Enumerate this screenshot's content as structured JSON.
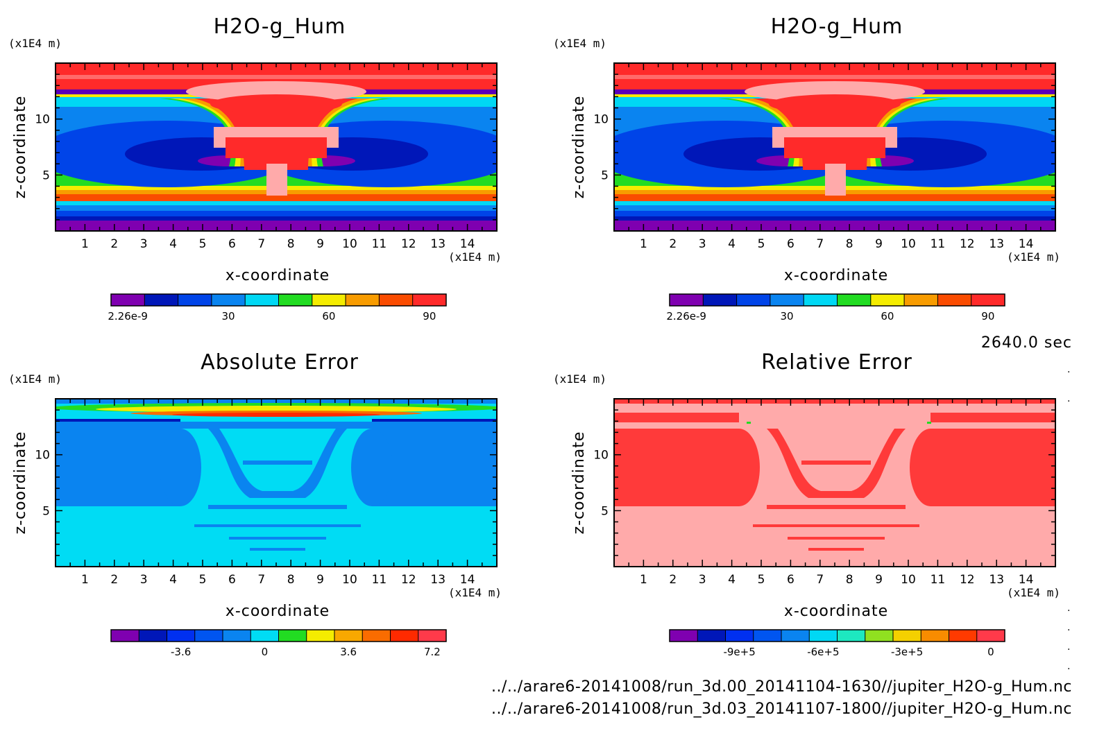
{
  "time_label": "2640.0 sec",
  "file_paths": [
    "../../arare6-20141008/run_3d.00_20141104-1630//jupiter_H2O-g_Hum.nc",
    "../../arare6-20141008/run_3d.03_20141107-1800//jupiter_H2O-g_Hum.nc"
  ],
  "chart_data": [
    {
      "type": "heatmap",
      "title": "H2O-g_Hum",
      "xlabel": "x-coordinate",
      "ylabel": "z-coordinate",
      "x_unit": "(x1E4 m)",
      "y_unit": "(x1E4 m)",
      "xticks": [
        "1",
        "2",
        "3",
        "4",
        "5",
        "6",
        "7",
        "8",
        "9",
        "10",
        "11",
        "12",
        "13",
        "14"
      ],
      "yticks": [
        "5",
        "10"
      ],
      "xlim": [
        0,
        15
      ],
      "ylim": [
        0,
        15
      ],
      "colorbar": {
        "levels": 10,
        "labels": [
          {
            "text": "2.26e-9",
            "level": 0
          },
          {
            "text": "30",
            "level": 3
          },
          {
            "text": "60",
            "level": 6
          },
          {
            "text": "90",
            "level": 9
          }
        ],
        "colors": [
          "#7f00b0",
          "#0017b8",
          "#0044e8",
          "#0a84f0",
          "#00d8f4",
          "#22dc22",
          "#f4ec00",
          "#f89c00",
          "#fa4c00",
          "#ff2a2a"
        ]
      }
    },
    {
      "type": "heatmap",
      "title": "H2O-g_Hum",
      "xlabel": "x-coordinate",
      "ylabel": "z-coordinate",
      "x_unit": "(x1E4 m)",
      "y_unit": "(x1E4 m)",
      "xticks": [
        "1",
        "2",
        "3",
        "4",
        "5",
        "6",
        "7",
        "8",
        "9",
        "10",
        "11",
        "12",
        "13",
        "14"
      ],
      "yticks": [
        "5",
        "10"
      ],
      "xlim": [
        0,
        15
      ],
      "ylim": [
        0,
        15
      ],
      "colorbar": {
        "levels": 10,
        "labels": [
          {
            "text": "2.26e-9",
            "level": 0
          },
          {
            "text": "30",
            "level": 3
          },
          {
            "text": "60",
            "level": 6
          },
          {
            "text": "90",
            "level": 9
          }
        ],
        "colors": [
          "#7f00b0",
          "#0017b8",
          "#0044e8",
          "#0a84f0",
          "#00d8f4",
          "#22dc22",
          "#f4ec00",
          "#f89c00",
          "#fa4c00",
          "#ff2a2a"
        ]
      }
    },
    {
      "type": "heatmap",
      "title": "Absolute Error",
      "xlabel": "x-coordinate",
      "ylabel": "z-coordinate",
      "x_unit": "(x1E4 m)",
      "y_unit": "(x1E4 m)",
      "xticks": [
        "1",
        "2",
        "3",
        "4",
        "5",
        "6",
        "7",
        "8",
        "9",
        "10",
        "11",
        "12",
        "13",
        "14"
      ],
      "yticks": [
        "5",
        "10"
      ],
      "xlim": [
        0,
        15
      ],
      "ylim": [
        0,
        15
      ],
      "colorbar": {
        "levels": 12,
        "labels": [
          {
            "text": "-3.6",
            "level": 2
          },
          {
            "text": "0",
            "level": 5
          },
          {
            "text": "3.6",
            "level": 8
          },
          {
            "text": "7.2",
            "level": 11
          }
        ],
        "colors": [
          "#7f00b0",
          "#0017b8",
          "#0030f0",
          "#0055f0",
          "#0a84f0",
          "#00dcf4",
          "#22dc22",
          "#f4ec00",
          "#f8a800",
          "#fa6c00",
          "#ff2a00",
          "#ff3a4a"
        ]
      }
    },
    {
      "type": "heatmap",
      "title": "Relative Error",
      "xlabel": "x-coordinate",
      "ylabel": "z-coordinate",
      "x_unit": "(x1E4 m)",
      "y_unit": "(x1E4 m)",
      "xticks": [
        "1",
        "2",
        "3",
        "4",
        "5",
        "6",
        "7",
        "8",
        "9",
        "10",
        "11",
        "12",
        "13",
        "14"
      ],
      "yticks": [
        "5",
        "10"
      ],
      "xlim": [
        0,
        15
      ],
      "ylim": [
        0,
        15
      ],
      "colorbar": {
        "levels": 12,
        "labels": [
          {
            "text": "-9e+5",
            "level": 2
          },
          {
            "text": "-6e+5",
            "level": 5
          },
          {
            "text": "-3e+5",
            "level": 8
          },
          {
            "text": "0",
            "level": 11
          }
        ],
        "colors": [
          "#7f00b0",
          "#0017b8",
          "#0030f0",
          "#0055f0",
          "#0a84f0",
          "#00d8f4",
          "#1de8c0",
          "#90e020",
          "#f4d000",
          "#f88c00",
          "#ff3a00",
          "#ff3a4a"
        ]
      }
    }
  ]
}
